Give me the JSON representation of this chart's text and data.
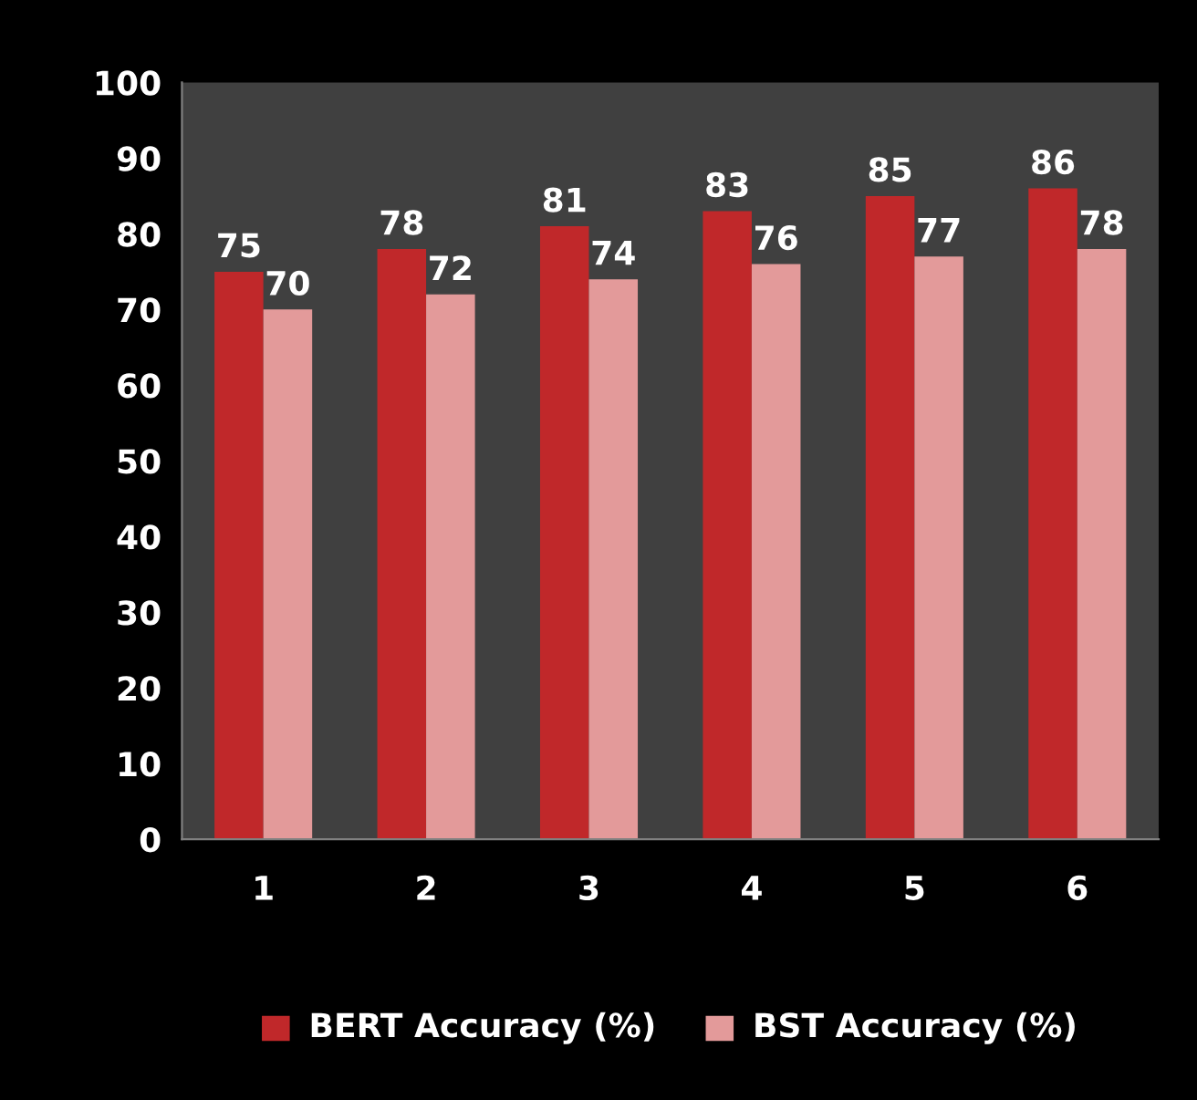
{
  "chart_data": {
    "type": "bar",
    "categories": [
      "1",
      "2",
      "3",
      "4",
      "5",
      "6"
    ],
    "series": [
      {
        "name": "BERT Accuracy (%)",
        "color": "#c0282a",
        "values": [
          75,
          78,
          81,
          83,
          85,
          86
        ]
      },
      {
        "name": "BST Accuracy (%)",
        "color": "#e39a9a",
        "values": [
          70,
          72,
          74,
          76,
          77,
          78
        ]
      }
    ],
    "ylim": [
      0,
      100
    ],
    "yticks": [
      0,
      10,
      20,
      30,
      40,
      50,
      60,
      70,
      80,
      90,
      100
    ],
    "grid": false,
    "legend": "bottom",
    "data_labels": true
  }
}
